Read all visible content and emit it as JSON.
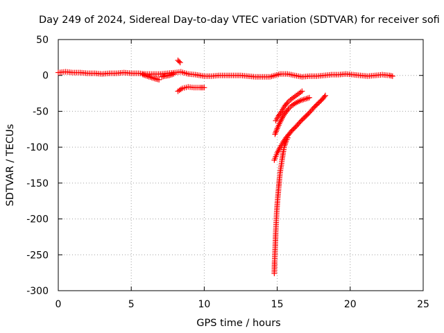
{
  "chart_data": {
    "type": "scatter",
    "title": "Day 249 of 2024, Sidereal Day-to-day VTEC variation (SDTVAR) for receiver sofi",
    "xlabel": "GPS time / hours",
    "ylabel": "SDTVAR / TECUs",
    "xlim": [
      0,
      25
    ],
    "ylim": [
      -300,
      50
    ],
    "xticks": [
      0,
      5,
      10,
      15,
      20,
      25
    ],
    "yticks": [
      -300,
      -250,
      -200,
      -150,
      -100,
      -50,
      0,
      50
    ],
    "grid": true,
    "marker": "+",
    "color": "#ff0000",
    "series": [
      {
        "values": [
          [
            0.0,
            4
          ],
          [
            0.5,
            5
          ],
          [
            1.0,
            4
          ],
          [
            1.5,
            4
          ],
          [
            2.0,
            3
          ],
          [
            2.5,
            3
          ],
          [
            3.0,
            2
          ],
          [
            3.5,
            3
          ],
          [
            4.0,
            3
          ],
          [
            4.5,
            4
          ],
          [
            5.0,
            3
          ],
          [
            5.5,
            3
          ],
          [
            6.0,
            2
          ],
          [
            6.5,
            2
          ],
          [
            7.0,
            2
          ],
          [
            7.5,
            3
          ],
          [
            8.0,
            4
          ],
          [
            8.4,
            5
          ],
          [
            8.9,
            2
          ],
          [
            9.4,
            1
          ],
          [
            10.0,
            -1
          ],
          [
            10.5,
            -1
          ],
          [
            11.0,
            0
          ],
          [
            11.5,
            0
          ],
          [
            12.0,
            0
          ],
          [
            12.5,
            0
          ],
          [
            13.0,
            -1
          ],
          [
            13.5,
            -2
          ],
          [
            14.0,
            -2
          ],
          [
            14.5,
            -2
          ],
          [
            15.2,
            2
          ],
          [
            15.7,
            2
          ],
          [
            16.2,
            0
          ],
          [
            16.7,
            -2
          ],
          [
            17.2,
            -1
          ],
          [
            17.7,
            -1
          ],
          [
            18.2,
            0
          ],
          [
            18.7,
            1
          ],
          [
            19.2,
            1
          ],
          [
            19.7,
            2
          ],
          [
            20.2,
            1
          ],
          [
            20.7,
            0
          ],
          [
            21.2,
            -1
          ],
          [
            21.7,
            0
          ],
          [
            22.2,
            1
          ],
          [
            22.7,
            0
          ],
          [
            22.9,
            -1
          ]
        ]
      },
      {
        "values": [
          [
            5.8,
            1
          ],
          [
            6.1,
            -1
          ],
          [
            6.4,
            -3
          ],
          [
            6.7,
            -5
          ],
          [
            6.9,
            -6
          ]
        ]
      },
      {
        "values": [
          [
            7.1,
            -2
          ],
          [
            7.3,
            -1
          ],
          [
            7.6,
            0
          ],
          [
            7.9,
            2
          ]
        ]
      },
      {
        "values": [
          [
            8.2,
            21
          ],
          [
            8.35,
            18
          ]
        ]
      },
      {
        "values": [
          [
            8.2,
            -22
          ],
          [
            8.5,
            -18
          ],
          [
            8.9,
            -16
          ],
          [
            9.3,
            -17
          ],
          [
            9.7,
            -17
          ],
          [
            10.0,
            -17
          ]
        ]
      },
      {
        "values": [
          [
            14.9,
            -63
          ],
          [
            15.1,
            -56
          ],
          [
            15.3,
            -50
          ],
          [
            15.5,
            -43
          ],
          [
            15.7,
            -38
          ],
          [
            15.9,
            -34
          ],
          [
            16.1,
            -31
          ],
          [
            16.3,
            -28
          ],
          [
            16.5,
            -25
          ],
          [
            16.7,
            -22
          ]
        ]
      },
      {
        "values": [
          [
            14.85,
            -82
          ],
          [
            15.0,
            -74
          ],
          [
            15.2,
            -65
          ],
          [
            15.4,
            -57
          ],
          [
            15.6,
            -51
          ],
          [
            15.8,
            -46
          ],
          [
            16.0,
            -42
          ],
          [
            16.3,
            -38
          ],
          [
            16.6,
            -35
          ],
          [
            16.9,
            -33
          ],
          [
            17.2,
            -31
          ]
        ]
      },
      {
        "values": [
          [
            14.8,
            -118
          ],
          [
            15.0,
            -108
          ],
          [
            15.2,
            -100
          ],
          [
            15.4,
            -93
          ],
          [
            15.6,
            -87
          ],
          [
            15.8,
            -82
          ],
          [
            16.0,
            -77
          ],
          [
            16.3,
            -71
          ],
          [
            16.6,
            -64
          ],
          [
            16.9,
            -58
          ],
          [
            17.2,
            -52
          ],
          [
            17.5,
            -45
          ],
          [
            17.8,
            -39
          ],
          [
            18.1,
            -33
          ],
          [
            18.3,
            -28
          ]
        ]
      },
      {
        "values": [
          [
            14.8,
            -276
          ],
          [
            14.82,
            -260
          ],
          [
            14.85,
            -245
          ],
          [
            14.88,
            -230
          ],
          [
            14.9,
            -218
          ],
          [
            14.93,
            -205
          ],
          [
            14.96,
            -192
          ],
          [
            15.0,
            -180
          ],
          [
            15.05,
            -168
          ],
          [
            15.1,
            -156
          ],
          [
            15.15,
            -145
          ],
          [
            15.2,
            -135
          ],
          [
            15.28,
            -125
          ],
          [
            15.35,
            -115
          ],
          [
            15.42,
            -106
          ],
          [
            15.5,
            -98
          ],
          [
            15.6,
            -92
          ],
          [
            15.72,
            -87
          ]
        ]
      }
    ]
  }
}
